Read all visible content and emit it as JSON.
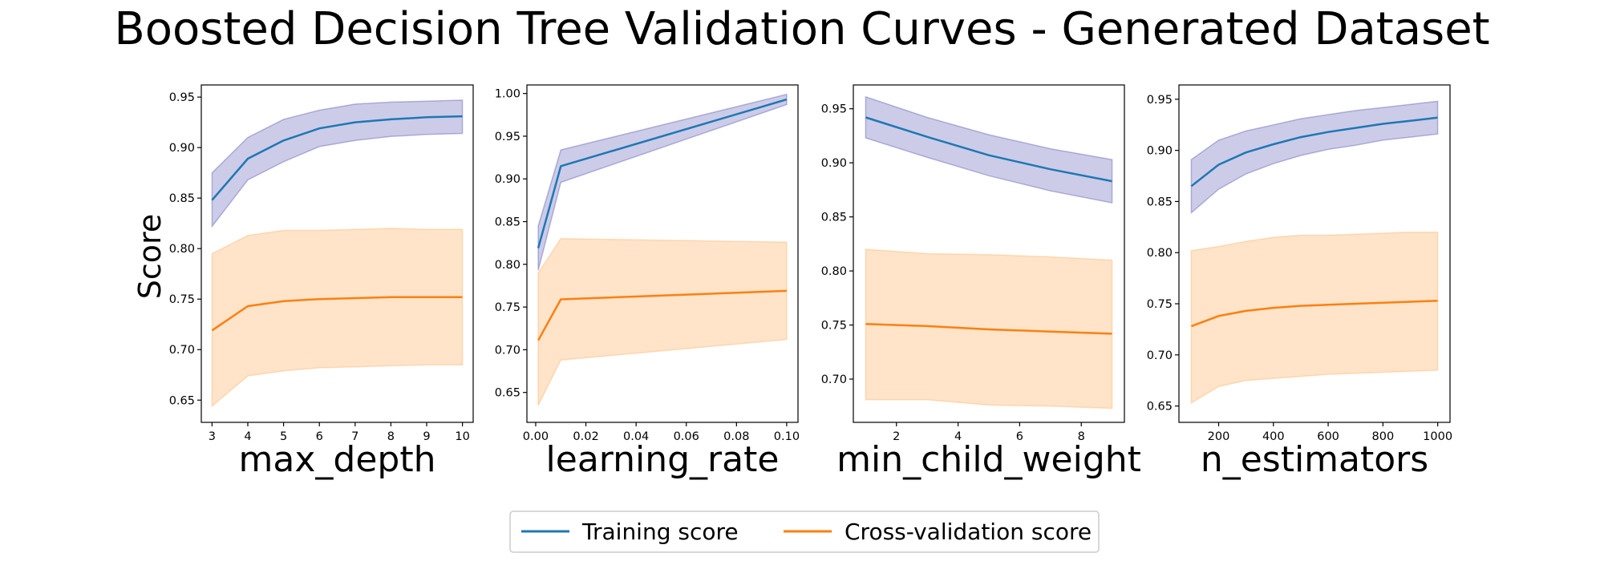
{
  "title": "Boosted Decision Tree Validation Curves - Generated Dataset",
  "ylabel": "Score",
  "colors": {
    "training_line": "#1f77b4",
    "training_band": "#00008b",
    "cv_line": "#ff7f0e",
    "cv_band": "#ffa54f"
  },
  "legend": {
    "training": "Training score",
    "cv": "Cross-validation score"
  },
  "chart_data": [
    {
      "type": "line",
      "xlabel": "max_depth",
      "x": [
        3,
        4,
        5,
        6,
        7,
        8,
        9,
        10
      ],
      "xticks": [
        3,
        4,
        5,
        6,
        7,
        8,
        9,
        10
      ],
      "xtick_labels": [
        "3",
        "4",
        "5",
        "6",
        "7",
        "8",
        "9",
        "10"
      ],
      "xlim": [
        2.7,
        10.3
      ],
      "ylim": [
        0.628,
        0.962
      ],
      "yticks": [
        0.65,
        0.7,
        0.75,
        0.8,
        0.85,
        0.9,
        0.95
      ],
      "ytick_labels": [
        "0.65",
        "0.70",
        "0.75",
        "0.80",
        "0.85",
        "0.90",
        "0.95"
      ],
      "series": [
        {
          "name": "Training score",
          "values": [
            0.848,
            0.889,
            0.907,
            0.919,
            0.925,
            0.928,
            0.93,
            0.931
          ],
          "upper": [
            0.875,
            0.91,
            0.928,
            0.937,
            0.943,
            0.945,
            0.946,
            0.947
          ],
          "lower": [
            0.822,
            0.868,
            0.886,
            0.901,
            0.907,
            0.911,
            0.913,
            0.914
          ]
        },
        {
          "name": "Cross-validation score",
          "values": [
            0.719,
            0.743,
            0.748,
            0.75,
            0.751,
            0.752,
            0.752,
            0.752
          ],
          "upper": [
            0.795,
            0.813,
            0.818,
            0.818,
            0.819,
            0.82,
            0.819,
            0.819
          ],
          "lower": [
            0.644,
            0.674,
            0.679,
            0.682,
            0.683,
            0.684,
            0.685,
            0.685
          ]
        }
      ]
    },
    {
      "type": "line",
      "xlabel": "learning_rate",
      "x": [
        0.001,
        0.01,
        0.1
      ],
      "xticks": [
        0.0,
        0.02,
        0.04,
        0.06,
        0.08,
        0.1
      ],
      "xtick_labels": [
        "0.00",
        "0.02",
        "0.04",
        "0.06",
        "0.08",
        "0.10"
      ],
      "xlim": [
        -0.0035,
        0.1045
      ],
      "ylim": [
        0.615,
        1.01
      ],
      "yticks": [
        0.65,
        0.7,
        0.75,
        0.8,
        0.85,
        0.9,
        0.95,
        1.0
      ],
      "ytick_labels": [
        "0.65",
        "0.70",
        "0.75",
        "0.80",
        "0.85",
        "0.90",
        "0.95",
        "1.00"
      ],
      "series": [
        {
          "name": "Training score",
          "values": [
            0.819,
            0.915,
            0.993
          ],
          "upper": [
            0.845,
            0.934,
            0.999
          ],
          "lower": [
            0.793,
            0.896,
            0.987
          ]
        },
        {
          "name": "Cross-validation score",
          "values": [
            0.711,
            0.759,
            0.769
          ],
          "upper": [
            0.79,
            0.83,
            0.826
          ],
          "lower": [
            0.635,
            0.688,
            0.712
          ]
        }
      ]
    },
    {
      "type": "line",
      "xlabel": "min_child_weight",
      "x": [
        1,
        3,
        5,
        7,
        9
      ],
      "xticks": [
        2,
        4,
        6,
        8
      ],
      "xtick_labels": [
        "2",
        "4",
        "6",
        "8"
      ],
      "xlim": [
        0.6,
        9.4
      ],
      "ylim": [
        0.66,
        0.972
      ],
      "yticks": [
        0.7,
        0.75,
        0.8,
        0.85,
        0.9,
        0.95
      ],
      "ytick_labels": [
        "0.70",
        "0.75",
        "0.80",
        "0.85",
        "0.90",
        "0.95"
      ],
      "series": [
        {
          "name": "Training score",
          "values": [
            0.942,
            0.924,
            0.907,
            0.894,
            0.883
          ],
          "upper": [
            0.961,
            0.942,
            0.926,
            0.913,
            0.903
          ],
          "lower": [
            0.923,
            0.905,
            0.888,
            0.874,
            0.863
          ]
        },
        {
          "name": "Cross-validation score",
          "values": [
            0.751,
            0.749,
            0.746,
            0.744,
            0.742
          ],
          "upper": [
            0.82,
            0.816,
            0.815,
            0.813,
            0.81
          ],
          "lower": [
            0.681,
            0.681,
            0.676,
            0.675,
            0.673
          ]
        }
      ]
    },
    {
      "type": "line",
      "xlabel": "n_estimators",
      "x": [
        100,
        200,
        300,
        400,
        500,
        600,
        700,
        800,
        900,
        1000
      ],
      "xticks": [
        200,
        400,
        600,
        800,
        1000
      ],
      "xtick_labels": [
        "200",
        "400",
        "600",
        "800",
        "1000"
      ],
      "xlim": [
        55,
        1045
      ],
      "ylim": [
        0.634,
        0.964
      ],
      "yticks": [
        0.65,
        0.7,
        0.75,
        0.8,
        0.85,
        0.9,
        0.95
      ],
      "ytick_labels": [
        "0.65",
        "0.70",
        "0.75",
        "0.80",
        "0.85",
        "0.90",
        "0.95"
      ],
      "series": [
        {
          "name": "Training score",
          "values": [
            0.865,
            0.886,
            0.898,
            0.906,
            0.913,
            0.918,
            0.922,
            0.926,
            0.929,
            0.932
          ],
          "upper": [
            0.891,
            0.91,
            0.919,
            0.925,
            0.931,
            0.935,
            0.939,
            0.942,
            0.945,
            0.948
          ],
          "lower": [
            0.839,
            0.862,
            0.877,
            0.887,
            0.895,
            0.901,
            0.905,
            0.91,
            0.913,
            0.916
          ]
        },
        {
          "name": "Cross-validation score",
          "values": [
            0.728,
            0.738,
            0.743,
            0.746,
            0.748,
            0.749,
            0.75,
            0.751,
            0.752,
            0.753
          ],
          "upper": [
            0.802,
            0.806,
            0.811,
            0.815,
            0.817,
            0.817,
            0.818,
            0.819,
            0.82,
            0.82
          ],
          "lower": [
            0.653,
            0.669,
            0.675,
            0.677,
            0.679,
            0.681,
            0.682,
            0.683,
            0.684,
            0.685
          ]
        }
      ]
    }
  ]
}
